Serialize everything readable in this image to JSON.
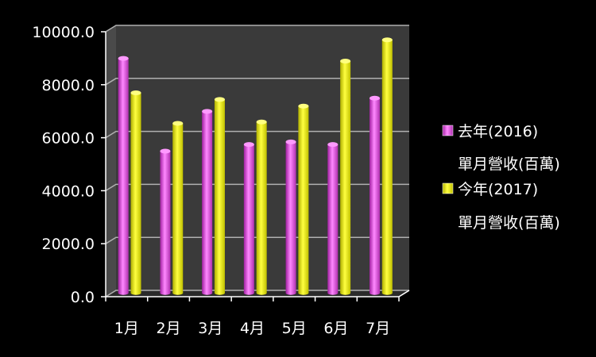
{
  "chart_data": {
    "type": "bar",
    "categories": [
      "1月",
      "2月",
      "3月",
      "4月",
      "5月",
      "6月",
      "7月"
    ],
    "series": [
      {
        "name": "去年(2016)單月營收(百萬)",
        "name_line1": "去年(2016)",
        "name_line2": "單月營收(百萬)",
        "color": "#ff66ff",
        "values": [
          8850,
          5350,
          6850,
          5600,
          5700,
          5600,
          7350
        ]
      },
      {
        "name": "今年(2017)單月營收(百萬)",
        "name_line1": "今年(2017)",
        "name_line2": "單月營收(百萬)",
        "color": "#ffff00",
        "values": [
          7550,
          6400,
          7300,
          6450,
          7050,
          8750,
          9550
        ]
      }
    ],
    "yticks": [
      "0.0",
      "2000.0",
      "4000.0",
      "6000.0",
      "8000.0",
      "10000.0"
    ],
    "ylim": [
      0,
      10000
    ],
    "title": "",
    "xlabel": "",
    "ylabel": "",
    "grid": true,
    "legend_position": "right",
    "colors": {
      "background": "#000000",
      "plot_wall": "#3a3a3a",
      "gridline": "#b0b0b0"
    }
  }
}
